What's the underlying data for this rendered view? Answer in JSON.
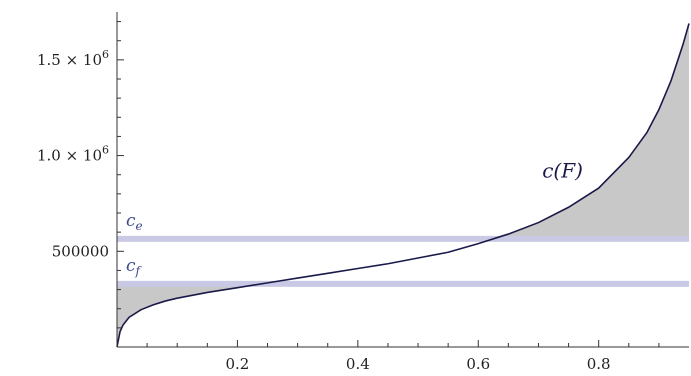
{
  "chart_data": {
    "type": "area",
    "title": "",
    "xlabel": "",
    "ylabel": "",
    "xlim": [
      0,
      0.95
    ],
    "ylim": [
      0,
      1750000
    ],
    "x_ticks": [
      {
        "value": 0.2,
        "label": "0.2"
      },
      {
        "value": 0.4,
        "label": "0.4"
      },
      {
        "value": 0.6,
        "label": "0.6"
      },
      {
        "value": 0.8,
        "label": "0.8"
      }
    ],
    "y_ticks": [
      {
        "value": 500000,
        "label": "500000",
        "mantissa": "",
        "exponent": ""
      },
      {
        "value": 1000000,
        "label": "",
        "mantissa": "1.0 × 10",
        "exponent": "6"
      },
      {
        "value": 1500000,
        "label": "",
        "mantissa": "1.5 × 10",
        "exponent": "6"
      }
    ],
    "curve": {
      "name": "c(F)",
      "label_at": {
        "x": 0.74,
        "y": 885000
      },
      "x": [
        0.0,
        0.005,
        0.01,
        0.02,
        0.04,
        0.06,
        0.08,
        0.1,
        0.15,
        0.2,
        0.25,
        0.3,
        0.35,
        0.4,
        0.45,
        0.5,
        0.55,
        0.6,
        0.65,
        0.7,
        0.75,
        0.8,
        0.85,
        0.88,
        0.9,
        0.92,
        0.94,
        0.95
      ],
      "y": [
        0,
        80000,
        115000,
        155000,
        195000,
        220000,
        240000,
        255000,
        285000,
        310000,
        335000,
        360000,
        385000,
        410000,
        435000,
        465000,
        495000,
        540000,
        590000,
        650000,
        730000,
        830000,
        990000,
        1120000,
        1240000,
        1390000,
        1580000,
        1690000
      ]
    },
    "horizontal_lines": [
      {
        "name": "c_e",
        "symbol": "c",
        "subscript": "e",
        "value": 565000
      },
      {
        "name": "c_f",
        "symbol": "c",
        "subscript": "f",
        "value": 330000
      }
    ],
    "shaded_regions": [
      {
        "between": [
          "curve",
          "c_e"
        ],
        "where": "curve above c_e",
        "color": "#c8c8c8"
      },
      {
        "between": [
          "c_f",
          "curve"
        ],
        "where": "curve below c_f",
        "color": "#c8c8c8"
      }
    ],
    "colors": {
      "curve": "#1a1a4a",
      "reference_lines": "#c9c9e6",
      "shade": "#c8c8c8",
      "labels": "#3a4a8a",
      "axes": "#333333"
    }
  }
}
